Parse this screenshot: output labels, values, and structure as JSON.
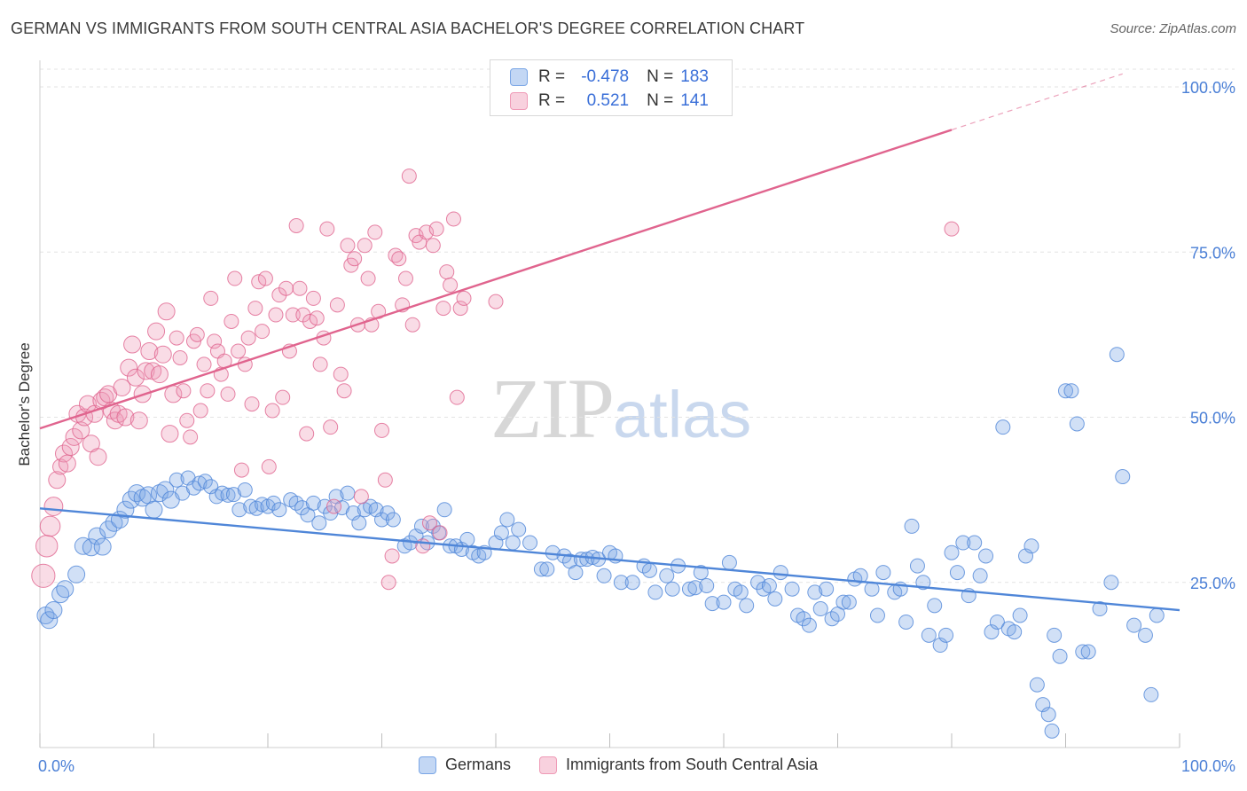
{
  "title": "GERMAN VS IMMIGRANTS FROM SOUTH CENTRAL ASIA BACHELOR'S DEGREE CORRELATION CHART",
  "source": "Source: ZipAtlas.com",
  "watermark": {
    "zip": "ZIP",
    "atlas": "atlas"
  },
  "stats": {
    "rows": [
      {
        "r_label": "R =",
        "r_value": "-0.478",
        "n_label": "N =",
        "n_value": "183",
        "color": "#7aa6e6"
      },
      {
        "r_label": "R =",
        "r_value": "0.521",
        "n_label": "N =",
        "n_value": "141",
        "color": "#ef9ab6"
      }
    ]
  },
  "legend": [
    {
      "label": "Germans",
      "color": "#7aa6e6"
    },
    {
      "label": "Immigrants from South Central Asia",
      "color": "#ef9ab6"
    }
  ],
  "chart_data": {
    "type": "scatter",
    "xlabel": "",
    "ylabel": "Bachelor's Degree",
    "xlim": [
      0,
      100
    ],
    "ylim": [
      0,
      100
    ],
    "x_tick_labels": [
      "0.0%",
      "100.0%"
    ],
    "y_tick_labels": [
      "25.0%",
      "50.0%",
      "75.0%",
      "100.0%"
    ],
    "y_ticks": [
      25,
      50,
      75,
      100
    ],
    "grid": true,
    "series": [
      {
        "name": "Germans",
        "color": "#4f86d8",
        "fill": "rgba(122,166,230,0.35)",
        "trend": {
          "x0": 0,
          "y0": 36.2,
          "x1": 100,
          "y1": 20.8,
          "solid_to": 100
        },
        "points": [
          [
            0.5,
            20
          ],
          [
            0.8,
            19.3
          ],
          [
            1.2,
            20.8
          ],
          [
            1.8,
            23.2
          ],
          [
            2.2,
            24
          ],
          [
            3.2,
            26.2
          ],
          [
            3.8,
            30.5
          ],
          [
            4.5,
            30.3
          ],
          [
            5,
            32
          ],
          [
            5.5,
            30.4
          ],
          [
            6,
            33
          ],
          [
            6.5,
            34
          ],
          [
            7,
            34.5
          ],
          [
            7.5,
            36
          ],
          [
            8,
            37.5
          ],
          [
            8.5,
            38.5
          ],
          [
            9,
            37.8
          ],
          [
            9.5,
            38.2
          ],
          [
            10,
            36
          ],
          [
            10.5,
            38.5
          ],
          [
            11,
            39
          ],
          [
            11.5,
            37.5
          ],
          [
            12,
            40.5
          ],
          [
            12.5,
            38.5
          ],
          [
            13,
            40.8
          ],
          [
            13.5,
            39.3
          ],
          [
            14,
            40
          ],
          [
            14.5,
            40.3
          ],
          [
            15,
            39.5
          ],
          [
            15.5,
            38
          ],
          [
            16,
            38.5
          ],
          [
            16.5,
            38.2
          ],
          [
            17,
            38.3
          ],
          [
            17.5,
            36
          ],
          [
            18,
            39
          ],
          [
            18.5,
            36.5
          ],
          [
            19,
            36.2
          ],
          [
            19.5,
            36.8
          ],
          [
            20,
            36.5
          ],
          [
            20.5,
            37
          ],
          [
            21,
            36
          ],
          [
            22,
            37.5
          ],
          [
            22.5,
            37
          ],
          [
            23,
            36.3
          ],
          [
            23.5,
            35.2
          ],
          [
            24,
            37
          ],
          [
            24.5,
            34
          ],
          [
            25,
            36.5
          ],
          [
            25.5,
            35.5
          ],
          [
            26,
            38
          ],
          [
            26.5,
            36.3
          ],
          [
            27,
            38.5
          ],
          [
            27.5,
            35.5
          ],
          [
            28,
            34
          ],
          [
            28.5,
            36
          ],
          [
            29,
            36.5
          ],
          [
            29.5,
            36
          ],
          [
            30,
            34.5
          ],
          [
            30.5,
            35.5
          ],
          [
            31,
            34.5
          ],
          [
            32,
            30.5
          ],
          [
            32.5,
            31
          ],
          [
            33,
            32
          ],
          [
            33.5,
            33.5
          ],
          [
            34,
            31
          ],
          [
            34.5,
            33.5
          ],
          [
            35,
            32.5
          ],
          [
            35.5,
            36
          ],
          [
            36,
            30.5
          ],
          [
            36.5,
            30.5
          ],
          [
            37,
            30
          ],
          [
            37.5,
            31.5
          ],
          [
            38,
            29.5
          ],
          [
            38.5,
            29
          ],
          [
            39,
            29.5
          ],
          [
            40,
            31
          ],
          [
            40.5,
            32.5
          ],
          [
            41,
            34.5
          ],
          [
            41.5,
            31
          ],
          [
            42,
            33
          ],
          [
            43,
            31
          ],
          [
            44,
            27
          ],
          [
            44.5,
            27
          ],
          [
            45,
            29.5
          ],
          [
            46,
            29
          ],
          [
            46.5,
            28.2
          ],
          [
            47,
            26.5
          ],
          [
            47.5,
            28.5
          ],
          [
            48,
            28.5
          ],
          [
            48.5,
            28.8
          ],
          [
            49,
            28.5
          ],
          [
            49.5,
            26
          ],
          [
            50,
            29.5
          ],
          [
            50.5,
            29
          ],
          [
            51,
            25
          ],
          [
            52,
            25
          ],
          [
            53,
            27.5
          ],
          [
            53.5,
            26.8
          ],
          [
            54,
            23.5
          ],
          [
            55,
            26
          ],
          [
            55.5,
            24
          ],
          [
            56,
            27.5
          ],
          [
            57,
            24
          ],
          [
            57.5,
            24.2
          ],
          [
            58,
            26.5
          ],
          [
            58.5,
            24.5
          ],
          [
            59,
            21.8
          ],
          [
            60,
            22
          ],
          [
            60.5,
            28
          ],
          [
            61,
            24
          ],
          [
            61.5,
            23.5
          ],
          [
            62,
            21.5
          ],
          [
            63,
            25
          ],
          [
            63.5,
            24
          ],
          [
            64,
            24.5
          ],
          [
            64.5,
            22.5
          ],
          [
            65,
            26.5
          ],
          [
            66,
            24
          ],
          [
            66.5,
            20
          ],
          [
            67,
            19.5
          ],
          [
            67.5,
            18.5
          ],
          [
            68,
            23.5
          ],
          [
            68.5,
            21
          ],
          [
            69,
            24
          ],
          [
            69.5,
            19.5
          ],
          [
            70,
            20.2
          ],
          [
            70.5,
            22
          ],
          [
            71,
            22
          ],
          [
            71.5,
            25.5
          ],
          [
            72,
            26
          ],
          [
            73,
            24
          ],
          [
            73.5,
            20
          ],
          [
            74,
            26.5
          ],
          [
            75,
            23.5
          ],
          [
            75.5,
            24
          ],
          [
            76,
            19
          ],
          [
            76.5,
            33.5
          ],
          [
            77,
            27.5
          ],
          [
            77.5,
            25
          ],
          [
            78,
            17
          ],
          [
            78.5,
            21.5
          ],
          [
            79,
            15.5
          ],
          [
            79.5,
            17
          ],
          [
            80,
            29.5
          ],
          [
            80.5,
            26.5
          ],
          [
            81,
            31
          ],
          [
            81.5,
            23
          ],
          [
            82,
            31
          ],
          [
            82.5,
            26
          ],
          [
            83,
            29
          ],
          [
            83.5,
            17.5
          ],
          [
            84,
            19
          ],
          [
            84.5,
            48.5
          ],
          [
            85,
            18
          ],
          [
            85.5,
            17.5
          ],
          [
            86,
            20
          ],
          [
            86.5,
            29
          ],
          [
            87,
            30.5
          ],
          [
            87.5,
            9.5
          ],
          [
            88,
            6.5
          ],
          [
            88.5,
            5
          ],
          [
            88.8,
            2.5
          ],
          [
            89,
            17
          ],
          [
            89.5,
            13.8
          ],
          [
            90,
            54
          ],
          [
            90.5,
            54
          ],
          [
            91,
            49
          ],
          [
            91.5,
            14.5
          ],
          [
            92,
            14.5
          ],
          [
            93,
            21
          ],
          [
            94,
            25
          ],
          [
            94.5,
            59.5
          ],
          [
            95,
            41
          ],
          [
            96,
            18.5
          ],
          [
            97,
            17
          ],
          [
            98,
            20
          ],
          [
            97.5,
            8
          ]
        ]
      },
      {
        "name": "Immigrants from South Central Asia",
        "color": "#e0648e",
        "fill": "rgba(239,154,182,0.35)",
        "trend": {
          "x0": 0,
          "y0": 48.3,
          "x1": 100,
          "y1": 104.8,
          "solid_to": 80
        },
        "points": [
          [
            0.3,
            26
          ],
          [
            0.6,
            30.5
          ],
          [
            0.9,
            33.5
          ],
          [
            1.2,
            36.5
          ],
          [
            1.5,
            40.5
          ],
          [
            1.8,
            42.5
          ],
          [
            2.1,
            44.5
          ],
          [
            2.4,
            43
          ],
          [
            2.7,
            45.5
          ],
          [
            3,
            47
          ],
          [
            3.3,
            50.5
          ],
          [
            3.6,
            48
          ],
          [
            3.9,
            50
          ],
          [
            4.2,
            52
          ],
          [
            4.5,
            46
          ],
          [
            4.8,
            50.5
          ],
          [
            5.1,
            44
          ],
          [
            5.4,
            52.5
          ],
          [
            5.7,
            53
          ],
          [
            6,
            53.5
          ],
          [
            6.3,
            51
          ],
          [
            6.6,
            49.5
          ],
          [
            6.9,
            50.5
          ],
          [
            7.2,
            54.5
          ],
          [
            7.5,
            50
          ],
          [
            7.8,
            57.5
          ],
          [
            8.1,
            61
          ],
          [
            8.4,
            56
          ],
          [
            8.7,
            49.5
          ],
          [
            9,
            53.5
          ],
          [
            9.3,
            57
          ],
          [
            9.6,
            60
          ],
          [
            9.9,
            57
          ],
          [
            10.2,
            63
          ],
          [
            10.5,
            56.5
          ],
          [
            10.8,
            59.5
          ],
          [
            11.1,
            66
          ],
          [
            11.4,
            47.5
          ],
          [
            11.7,
            53.5
          ],
          [
            12,
            62
          ],
          [
            12.3,
            59
          ],
          [
            12.6,
            54
          ],
          [
            12.9,
            49.5
          ],
          [
            13.2,
            47
          ],
          [
            13.5,
            61.5
          ],
          [
            13.8,
            62.5
          ],
          [
            14.1,
            51
          ],
          [
            14.4,
            58
          ],
          [
            14.7,
            54
          ],
          [
            15,
            68
          ],
          [
            15.3,
            61.5
          ],
          [
            15.6,
            60
          ],
          [
            15.9,
            56.5
          ],
          [
            16.2,
            58.5
          ],
          [
            16.5,
            53.5
          ],
          [
            16.8,
            64.5
          ],
          [
            17.1,
            71
          ],
          [
            17.4,
            60
          ],
          [
            17.7,
            42
          ],
          [
            18,
            58
          ],
          [
            18.3,
            62
          ],
          [
            18.6,
            52
          ],
          [
            18.9,
            66.5
          ],
          [
            19.2,
            70.5
          ],
          [
            19.5,
            63
          ],
          [
            19.8,
            71
          ],
          [
            20.1,
            42.5
          ],
          [
            20.4,
            51
          ],
          [
            20.7,
            65.5
          ],
          [
            21,
            68.5
          ],
          [
            21.3,
            53
          ],
          [
            21.6,
            69.5
          ],
          [
            21.9,
            60
          ],
          [
            22.2,
            65.5
          ],
          [
            22.5,
            79
          ],
          [
            22.8,
            69.5
          ],
          [
            23.1,
            65.5
          ],
          [
            23.4,
            47.5
          ],
          [
            23.7,
            64.5
          ],
          [
            24,
            68
          ],
          [
            24.3,
            65
          ],
          [
            24.6,
            58
          ],
          [
            24.9,
            62
          ],
          [
            25.2,
            78.5
          ],
          [
            25.5,
            48.5
          ],
          [
            25.8,
            36.5
          ],
          [
            26.1,
            67
          ],
          [
            26.4,
            56.5
          ],
          [
            26.7,
            54
          ],
          [
            27,
            76
          ],
          [
            27.3,
            73
          ],
          [
            27.6,
            74
          ],
          [
            27.9,
            64
          ],
          [
            28.2,
            38
          ],
          [
            28.5,
            76
          ],
          [
            28.8,
            71
          ],
          [
            29.1,
            64
          ],
          [
            29.4,
            78
          ],
          [
            29.7,
            66
          ],
          [
            30,
            48
          ],
          [
            30.3,
            40.5
          ],
          [
            30.6,
            25
          ],
          [
            30.9,
            29
          ],
          [
            31.2,
            74.5
          ],
          [
            31.5,
            74
          ],
          [
            31.8,
            67
          ],
          [
            32.1,
            71
          ],
          [
            32.4,
            86.5
          ],
          [
            32.7,
            64
          ],
          [
            33,
            77.5
          ],
          [
            33.3,
            76.5
          ],
          [
            33.6,
            30.5
          ],
          [
            33.9,
            78
          ],
          [
            34.2,
            34
          ],
          [
            34.5,
            76
          ],
          [
            34.8,
            78.5
          ],
          [
            35.1,
            32.5
          ],
          [
            35.4,
            66.5
          ],
          [
            35.7,
            72
          ],
          [
            36,
            70
          ],
          [
            36.3,
            80
          ],
          [
            36.6,
            53
          ],
          [
            36.9,
            66.5
          ],
          [
            37.2,
            68
          ],
          [
            40,
            67.5
          ],
          [
            80,
            78.5
          ]
        ]
      }
    ]
  }
}
